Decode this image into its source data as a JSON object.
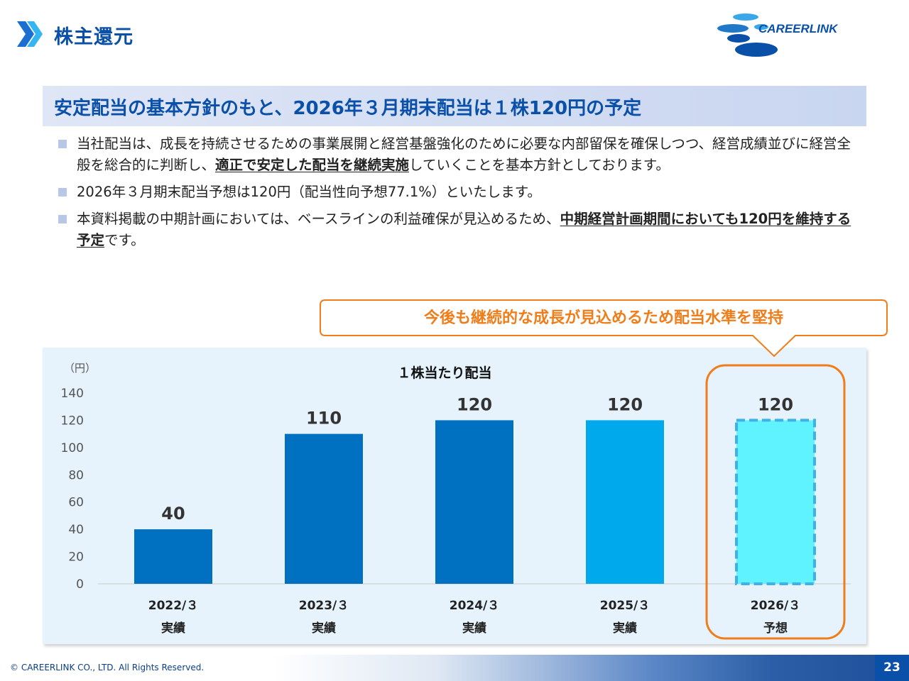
{
  "header": {
    "title": "株主還元",
    "logo_text": "CAREERLINK",
    "chevron_icon": "double-chevron-right-icon",
    "accent_color": "#0a4fa8"
  },
  "headline": "安定配当の基本方針のもと、2026年３月期末配当は１株120円の予定",
  "bullets": [
    {
      "pre": "当社配当は、成長を持続させるための事業展開と経営基盤強化のために必要な内部留保を確保しつつ、経営成績並びに経営全般を総合的に判断し、",
      "em": "適正で安定した配当を継続実施",
      "post": "していくことを基本方針としております。"
    },
    {
      "text": "2026年３月期末配当予想は120円（配当性向予想77.1%）といたします。"
    },
    {
      "pre": "本資料掲載の中期計画においては、ベースラインの利益確保が見込めるため、",
      "em": "中期経営計画期間においても120円を維持する予定",
      "post": "です。"
    }
  ],
  "callout": {
    "text": "今後も継続的な成長が見込めるため配当水準を堅持",
    "color": "#ef7d1a"
  },
  "chart_data": {
    "type": "bar",
    "title": "１株当たり配当",
    "ylabel": "（円）",
    "ylim": [
      0,
      140
    ],
    "yticks": [
      0,
      20,
      40,
      60,
      80,
      100,
      120,
      140
    ],
    "categories": [
      "2022/３",
      "2023/３",
      "2024/３",
      "2025/３",
      "2026/３"
    ],
    "sublabels": [
      "実績",
      "実績",
      "実績",
      "実績",
      "予想"
    ],
    "values": [
      40,
      110,
      120,
      120,
      120
    ],
    "data_labels": [
      "40",
      "110",
      "120",
      "120",
      "120"
    ],
    "bar_colors": [
      "#0070c0",
      "#0070c0",
      "#0070c0",
      "#00a9ec",
      "#5ff3ff"
    ],
    "forecast_index": 4,
    "forecast_border_color": "#3fb0ea",
    "highlight_color": "#ef7d1a"
  },
  "footer": {
    "copyright": "© CAREERLINK CO., LTD. All Rights Reserved.",
    "page_number": "23"
  }
}
